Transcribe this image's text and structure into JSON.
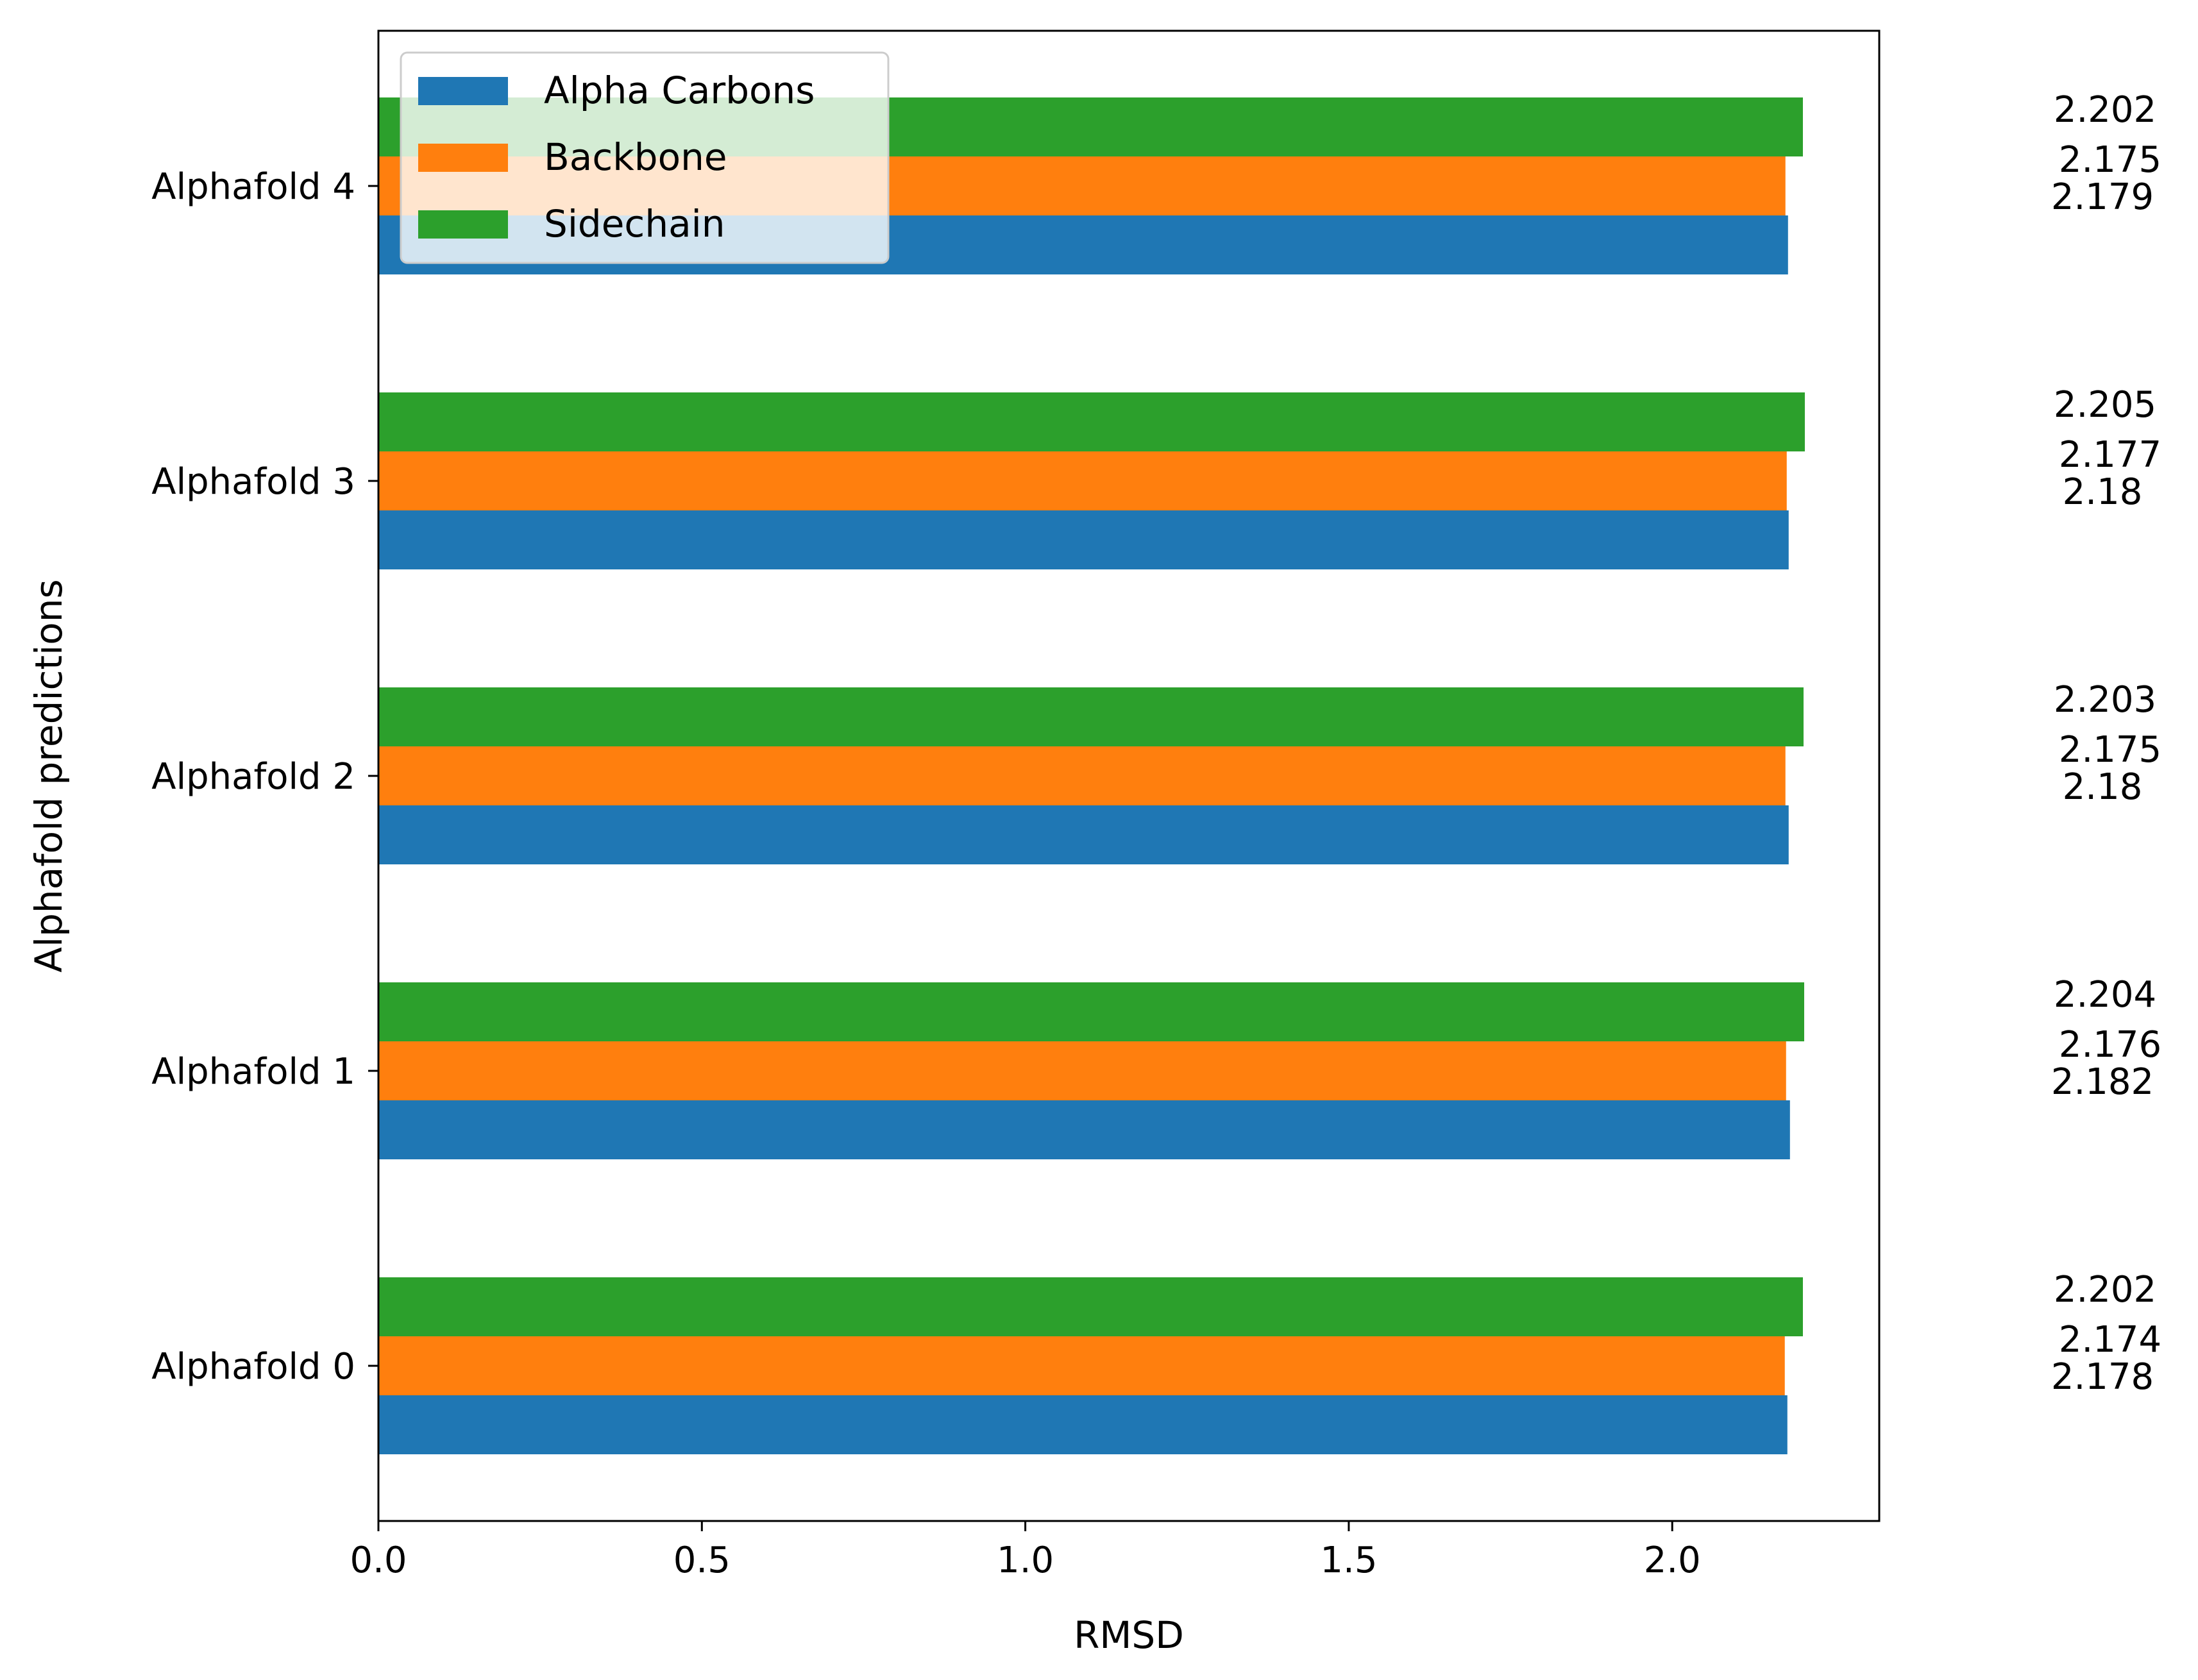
{
  "chart_data": {
    "type": "bar",
    "orientation": "horizontal",
    "title": "",
    "xlabel": "RMSD",
    "ylabel": "Alphafold predictions",
    "xlim": [
      0,
      2.32
    ],
    "x_ticks": [
      "0.0",
      "0.5",
      "1.0",
      "1.5",
      "2.0"
    ],
    "categories": [
      "Alphafold 0",
      "Alphafold 1",
      "Alphafold 2",
      "Alphafold 3",
      "Alphafold 4"
    ],
    "series": [
      {
        "name": "Alpha Carbons",
        "color": "#1f77b4",
        "values": [
          2.178,
          2.182,
          2.18,
          2.18,
          2.179
        ]
      },
      {
        "name": "Backbone",
        "color": "#ff7f0e",
        "values": [
          2.174,
          2.176,
          2.175,
          2.177,
          2.175
        ]
      },
      {
        "name": "Sidechain",
        "color": "#2ca02c",
        "values": [
          2.202,
          2.204,
          2.203,
          2.205,
          2.202
        ]
      }
    ],
    "value_labels": {
      "rows": [
        [
          "2.178",
          "2.174",
          "2.202"
        ],
        [
          "2.182",
          "2.176",
          "2.204"
        ],
        [
          "2.18",
          "2.175",
          "2.203"
        ],
        [
          "2.18",
          "2.177",
          "2.205"
        ],
        [
          "2.179",
          "2.175",
          "2.202"
        ]
      ]
    },
    "grid": false,
    "legend": {
      "position": "upper-left",
      "entries": [
        "Alpha Carbons",
        "Backbone",
        "Sidechain"
      ]
    }
  }
}
